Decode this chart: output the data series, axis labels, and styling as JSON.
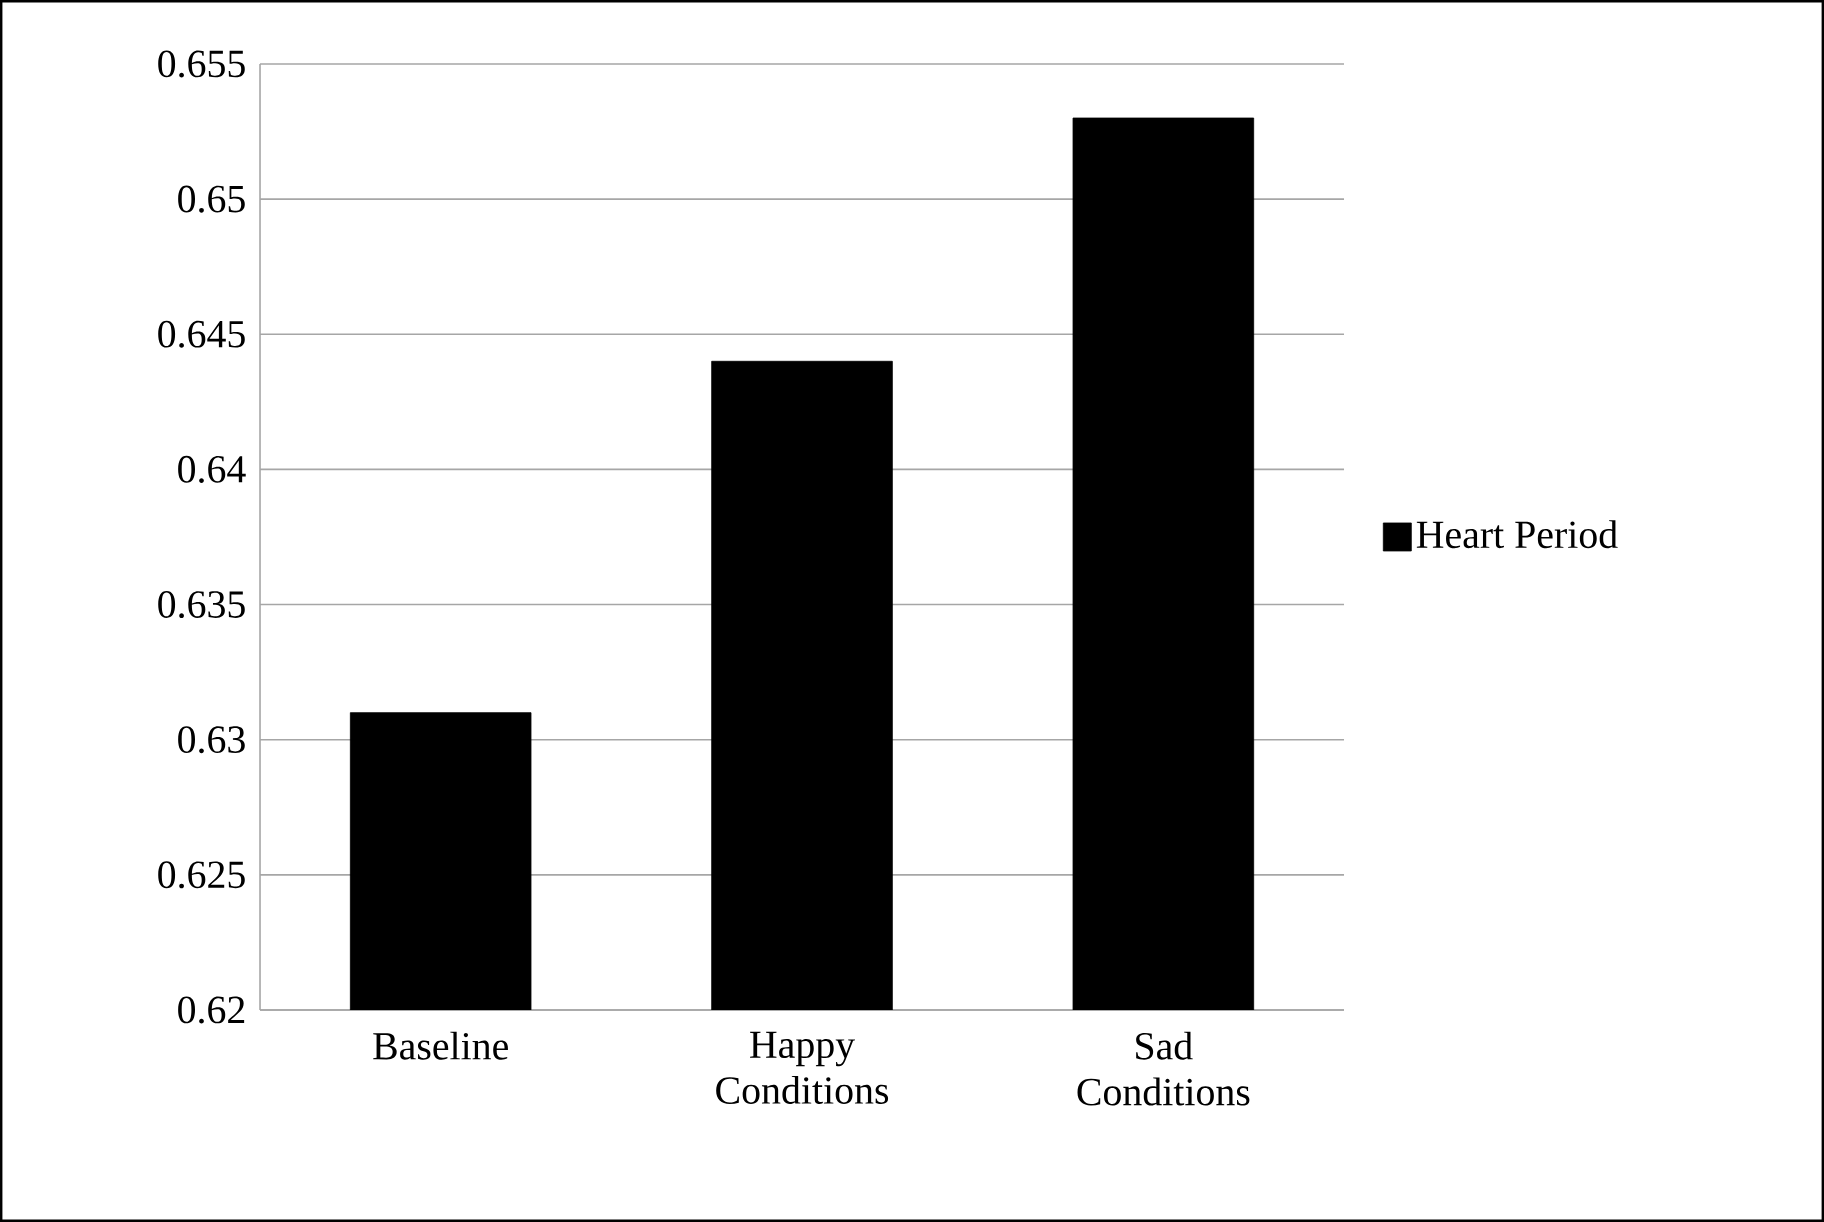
{
  "chart_data": {
    "type": "bar",
    "categories": [
      "Baseline",
      "Happy Conditions",
      "Sad Conditions"
    ],
    "series": [
      {
        "name": "Heart Period",
        "color": "#000000",
        "values": [
          0.631,
          0.644,
          0.653
        ]
      }
    ],
    "ylim": [
      0.62,
      0.655
    ],
    "yticks": [
      0.62,
      0.625,
      0.63,
      0.635,
      0.64,
      0.645,
      0.65,
      0.655
    ],
    "grid": "y",
    "legend": "right"
  }
}
